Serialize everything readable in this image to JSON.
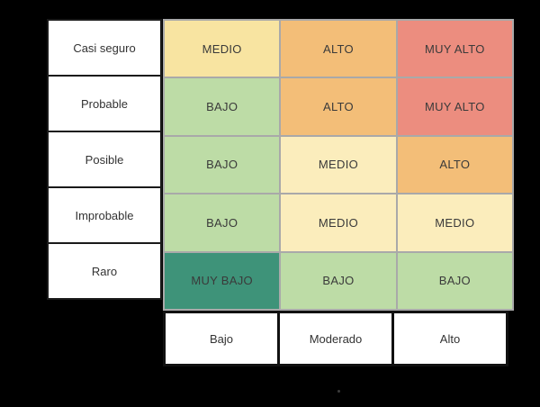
{
  "chart_data": {
    "type": "heatmap",
    "row_labels": [
      "Casi seguro",
      "Probable",
      "Posible",
      "Improbable",
      "Raro"
    ],
    "col_labels": [
      "Bajo",
      "Moderado",
      "Alto"
    ],
    "cells": [
      [
        {
          "label": "MEDIO",
          "color": "#F8E4A1"
        },
        {
          "label": "ALTO",
          "color": "#F3BE78"
        },
        {
          "label": "MUY ALTO",
          "color": "#EC8D7F"
        }
      ],
      [
        {
          "label": "BAJO",
          "color": "#BDDCA6"
        },
        {
          "label": "ALTO",
          "color": "#F3BE78"
        },
        {
          "label": "MUY ALTO",
          "color": "#EC8D7F"
        }
      ],
      [
        {
          "label": "BAJO",
          "color": "#BDDCA6"
        },
        {
          "label": "MEDIO",
          "color": "#FBEDBC"
        },
        {
          "label": "ALTO",
          "color": "#F3BE78"
        }
      ],
      [
        {
          "label": "BAJO",
          "color": "#BDDCA6"
        },
        {
          "label": "MEDIO",
          "color": "#FBEDBC"
        },
        {
          "label": "MEDIO",
          "color": "#FBEDBC"
        }
      ],
      [
        {
          "label": "MUY BAJO",
          "color": "#3E9379"
        },
        {
          "label": "BAJO",
          "color": "#BDDCA6"
        },
        {
          "label": "BAJO",
          "color": "#BDDCA6"
        }
      ]
    ],
    "layout": {
      "background": "#000000",
      "grid_border_color": "#A9A9A9",
      "label_border_color": "#1A1A1A",
      "label_background": "#FFFFFF",
      "text_color": "#333333",
      "legend": "none",
      "grid_on": true
    }
  }
}
